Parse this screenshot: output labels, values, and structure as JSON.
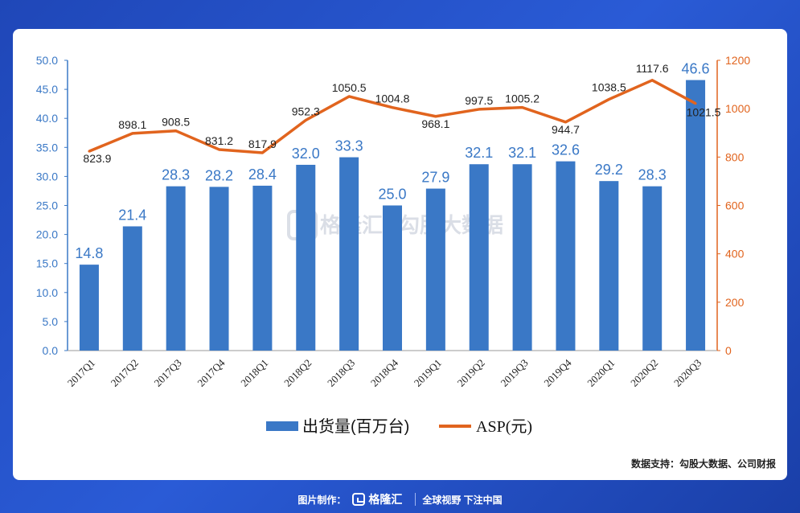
{
  "chart_data": {
    "type": "bar",
    "categories": [
      "2017Q1",
      "2017Q2",
      "2017Q3",
      "2017Q4",
      "2018Q1",
      "2018Q2",
      "2018Q3",
      "2018Q4",
      "2019Q1",
      "2019Q2",
      "2019Q3",
      "2019Q4",
      "2020Q1",
      "2020Q2",
      "2020Q3"
    ],
    "series": [
      {
        "name": "出货量(百万台)",
        "type": "bar",
        "axis": "left",
        "color": "#3a78c6",
        "values": [
          14.8,
          21.4,
          28.3,
          28.2,
          28.4,
          32.0,
          33.3,
          25.0,
          27.9,
          32.1,
          32.1,
          32.6,
          29.2,
          28.3,
          46.6
        ],
        "labels": [
          "14.8",
          "21.4",
          "28.3",
          "28.2",
          "28.4",
          "32.0",
          "33.3",
          "25.0",
          "27.9",
          "32.1",
          "32.1",
          "32.6",
          "29.2",
          "28.3",
          "46.6"
        ]
      },
      {
        "name": "ASP(元)",
        "type": "line",
        "axis": "right",
        "color": "#e1641e",
        "values": [
          823.9,
          898.1,
          908.5,
          831.2,
          817.9,
          952.3,
          1050.5,
          1004.8,
          968.1,
          997.5,
          1005.2,
          944.7,
          1038.5,
          1117.6,
          1021.5
        ],
        "labels": [
          "823.9",
          "898.1",
          "908.5",
          "831.2",
          "817.9",
          "952.3",
          "1050.5",
          "1004.8",
          "968.1",
          "997.5",
          "1005.2",
          "944.7",
          "1038.5",
          "1117.6",
          "1021.5"
        ]
      }
    ],
    "y_left": {
      "min": 0,
      "max": 50,
      "step": 5,
      "ticks": [
        "0.0",
        "5.0",
        "10.0",
        "15.0",
        "20.0",
        "25.0",
        "30.0",
        "35.0",
        "40.0",
        "45.0",
        "50.0"
      ]
    },
    "y_right": {
      "min": 0,
      "max": 1200,
      "step": 200,
      "ticks": [
        "0",
        "200",
        "400",
        "600",
        "800",
        "1000",
        "1200"
      ]
    },
    "legend_position": "bottom"
  },
  "watermark": {
    "brand": "格隆汇",
    "partner": "勾股大数据"
  },
  "source_text": "数据支持：勾股大数据、公司财报",
  "footer": {
    "made_by": "图片制作：",
    "brand": "格隆汇",
    "slogan": "全球视野 下注中国"
  },
  "colors": {
    "bar": "#3a78c6",
    "line": "#e1641e",
    "label_bar": "#3a78c6",
    "axis_left": "#3a78c6",
    "axis_right": "#e1641e"
  }
}
